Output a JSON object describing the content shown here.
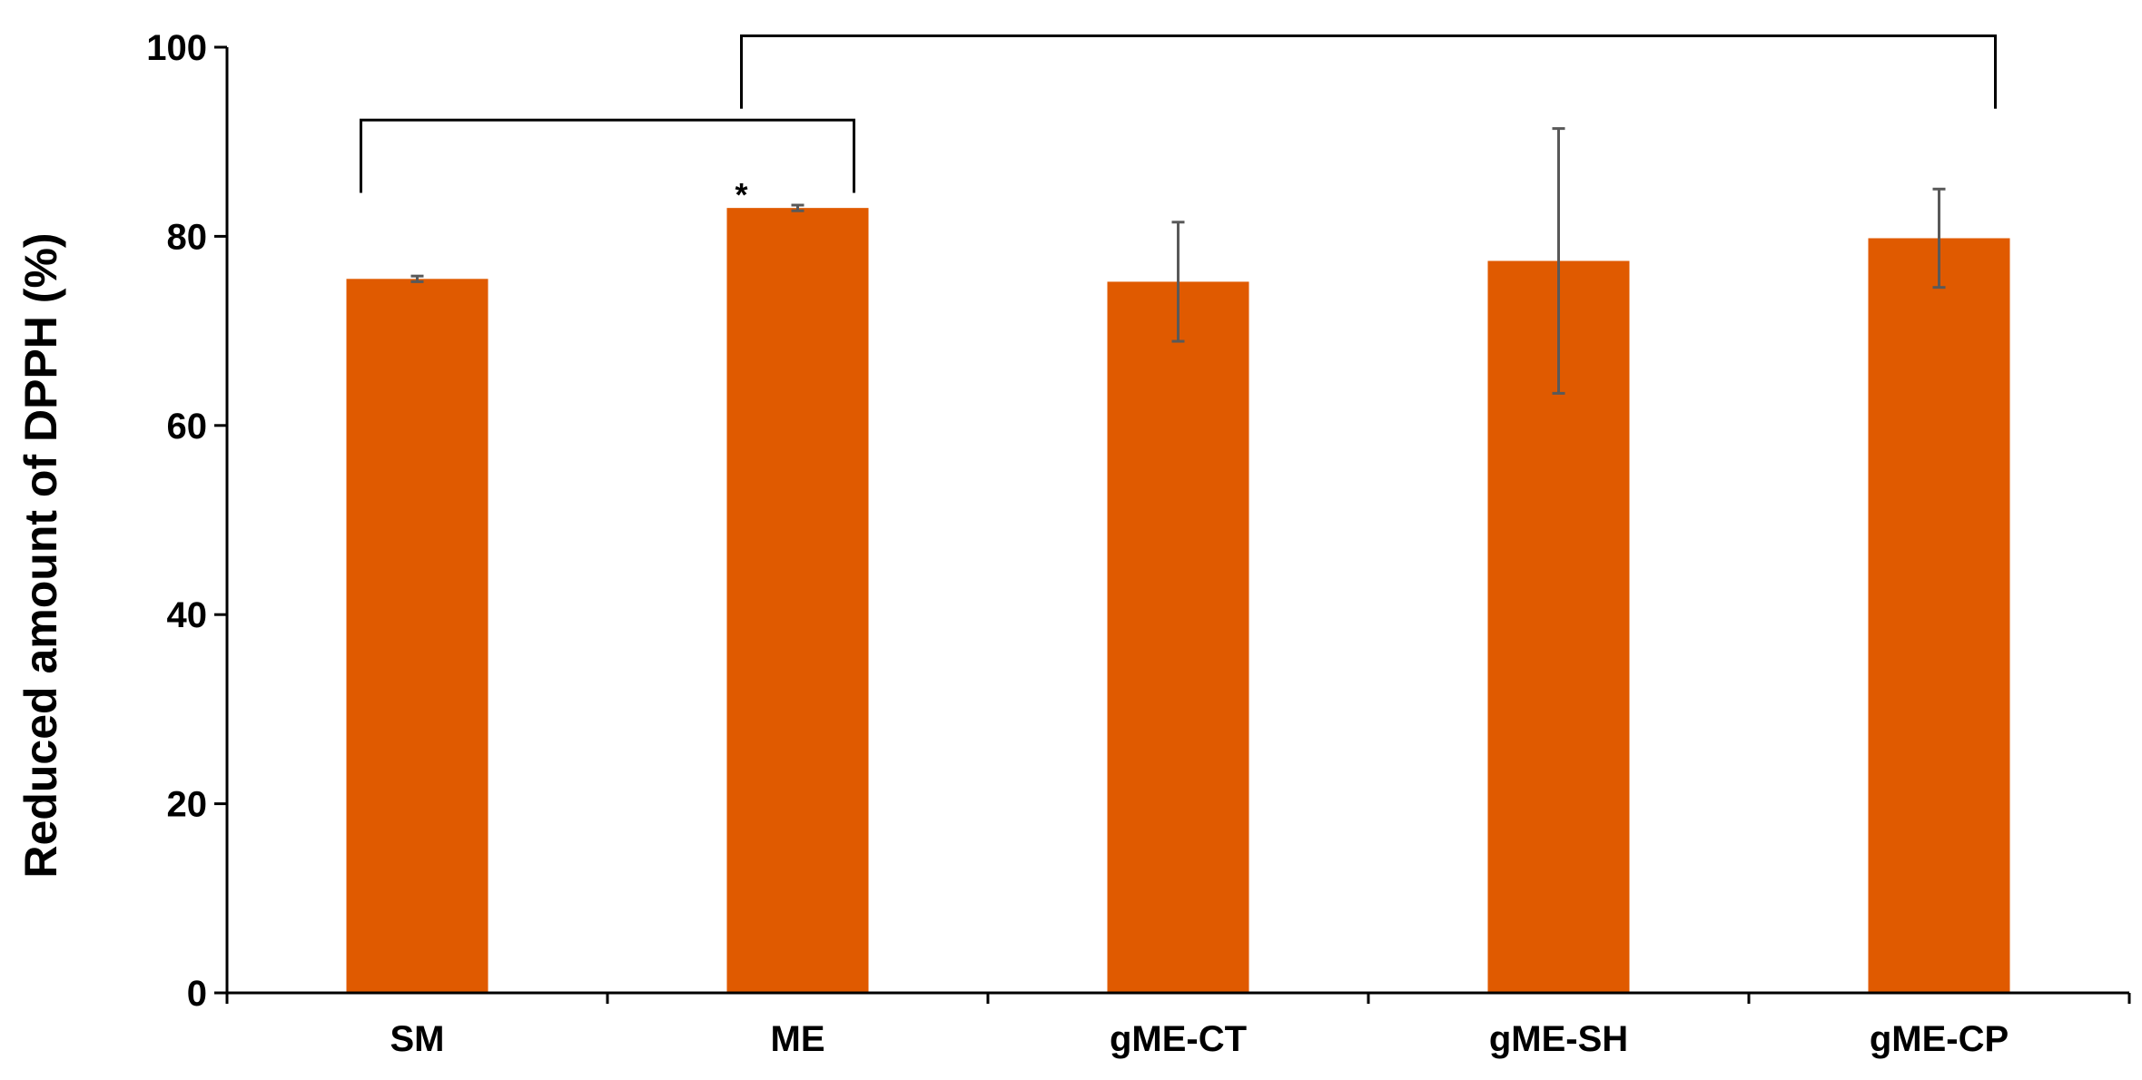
{
  "chart_data": {
    "type": "bar",
    "title": "",
    "xlabel": "",
    "ylabel": "Reduced amount of DPPH (%)",
    "ylim": [
      0,
      100
    ],
    "yticks": [
      0,
      20,
      40,
      60,
      80,
      100
    ],
    "grid": false,
    "legend": "none",
    "categories": [
      "SM",
      "ME",
      "gME-CT",
      "gME-SH",
      "gME-CP"
    ],
    "values": [
      75.5,
      83.0,
      75.2,
      77.4,
      79.8
    ],
    "errors": [
      0.3,
      0.3,
      6.3,
      14.0,
      5.2
    ],
    "bar_color": "#E05A00",
    "error_bar_color": "#595959",
    "annotations": [
      {
        "category": "ME",
        "text": "*"
      }
    ],
    "brackets": [
      {
        "from": "SM",
        "to": "ME"
      },
      {
        "from": "ME",
        "to": "gME-CP"
      }
    ]
  }
}
